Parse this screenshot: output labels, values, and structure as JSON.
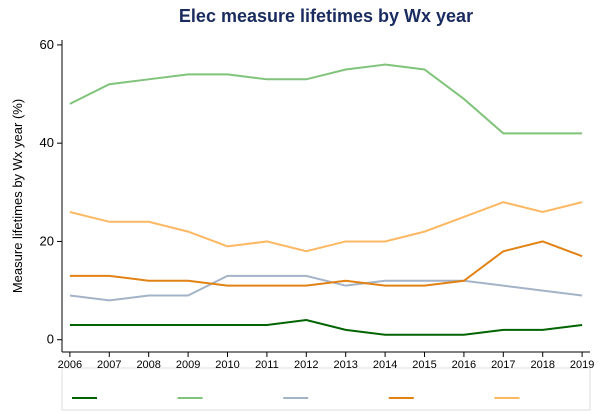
{
  "chart_data": {
    "type": "line",
    "title": "Elec measure lifetimes by Wx year",
    "y_label": "Measure lifetimes by Wx year (%)",
    "x": [
      2006,
      2007,
      2008,
      2009,
      2010,
      2011,
      2012,
      2013,
      2014,
      2015,
      2016,
      2017,
      2018,
      2019
    ],
    "xlim": [
      2005.8,
      2019.2
    ],
    "xticks": [
      2006,
      2007,
      2008,
      2009,
      2010,
      2011,
      2012,
      2013,
      2014,
      2015,
      2016,
      2017,
      2018,
      2019
    ],
    "ylim": [
      -2.5,
      61
    ],
    "yticks": [
      0,
      20,
      40,
      60
    ],
    "grid": false,
    "legend": "bottom",
    "series": [
      {
        "color": "#006400",
        "values": [
          3,
          3,
          3,
          3,
          3,
          3,
          4,
          2,
          1,
          1,
          1,
          2,
          2,
          3
        ]
      },
      {
        "color": "#7fc47a",
        "values": [
          48,
          52,
          53,
          54,
          54,
          53,
          53,
          55,
          56,
          55,
          49,
          42,
          42,
          42
        ]
      },
      {
        "color": "#a3b3c8",
        "values": [
          9,
          8,
          9,
          9,
          13,
          13,
          13,
          11,
          12,
          12,
          12,
          11,
          10,
          9
        ]
      },
      {
        "color": "#e08214",
        "values": [
          13,
          13,
          12,
          12,
          11,
          11,
          11,
          12,
          11,
          11,
          12,
          18,
          20,
          17
        ]
      },
      {
        "color": "#fdb863",
        "values": [
          26,
          24,
          24,
          22,
          19,
          20,
          18,
          20,
          20,
          22,
          25,
          28,
          26,
          28
        ]
      }
    ]
  }
}
